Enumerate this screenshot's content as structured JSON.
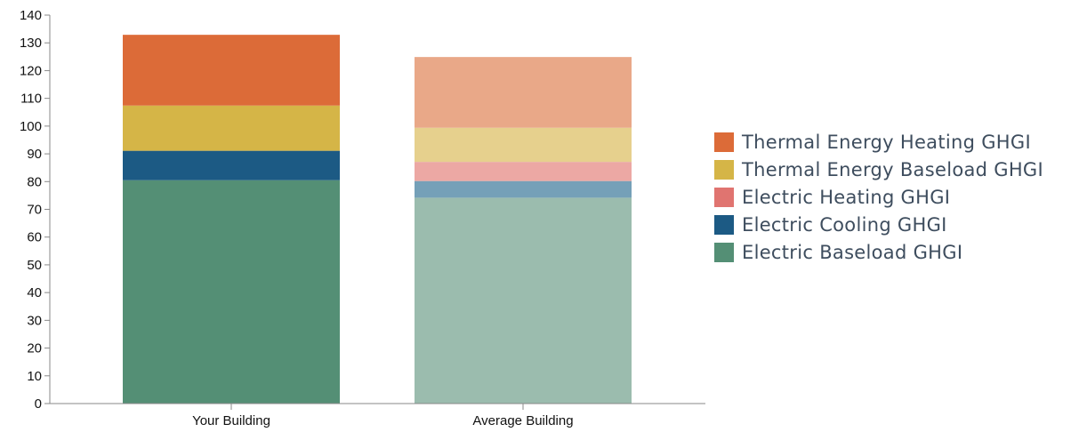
{
  "chart_data": {
    "type": "bar",
    "stacked": true,
    "categories": [
      "Your Building",
      "Average Building"
    ],
    "ylim": [
      0,
      140
    ],
    "yticks": [
      0,
      10,
      20,
      30,
      40,
      50,
      60,
      70,
      80,
      90,
      100,
      110,
      120,
      130,
      140
    ],
    "xlabel": "",
    "ylabel": "",
    "grid": false,
    "legend_position": "right",
    "series": [
      {
        "name": "Electric Baseload GHGI",
        "values": [
          80.5,
          74.2
        ],
        "colors": [
          "#548f75",
          "#9bbcae"
        ]
      },
      {
        "name": "Electric Cooling GHGI",
        "values": [
          10.6,
          6.0
        ],
        "colors": [
          "#1c5a84",
          "#75a0b8"
        ]
      },
      {
        "name": "Electric Heating GHGI",
        "values": [
          0,
          6.9
        ],
        "colors": [
          "#e07470",
          "#eca8a4"
        ]
      },
      {
        "name": "Thermal Energy Baseload GHGI",
        "values": [
          16.3,
          12.3
        ],
        "colors": [
          "#d5b547",
          "#e6d08d"
        ]
      },
      {
        "name": "Thermal Energy Heating GHGI",
        "values": [
          25.5,
          25.5
        ],
        "colors": [
          "#dc6b38",
          "#e9a888"
        ]
      }
    ],
    "legend_order": [
      "Thermal Energy Heating GHGI",
      "Thermal Energy Baseload GHGI",
      "Electric Heating GHGI",
      "Electric Cooling GHGI",
      "Electric Baseload GHGI"
    ]
  }
}
